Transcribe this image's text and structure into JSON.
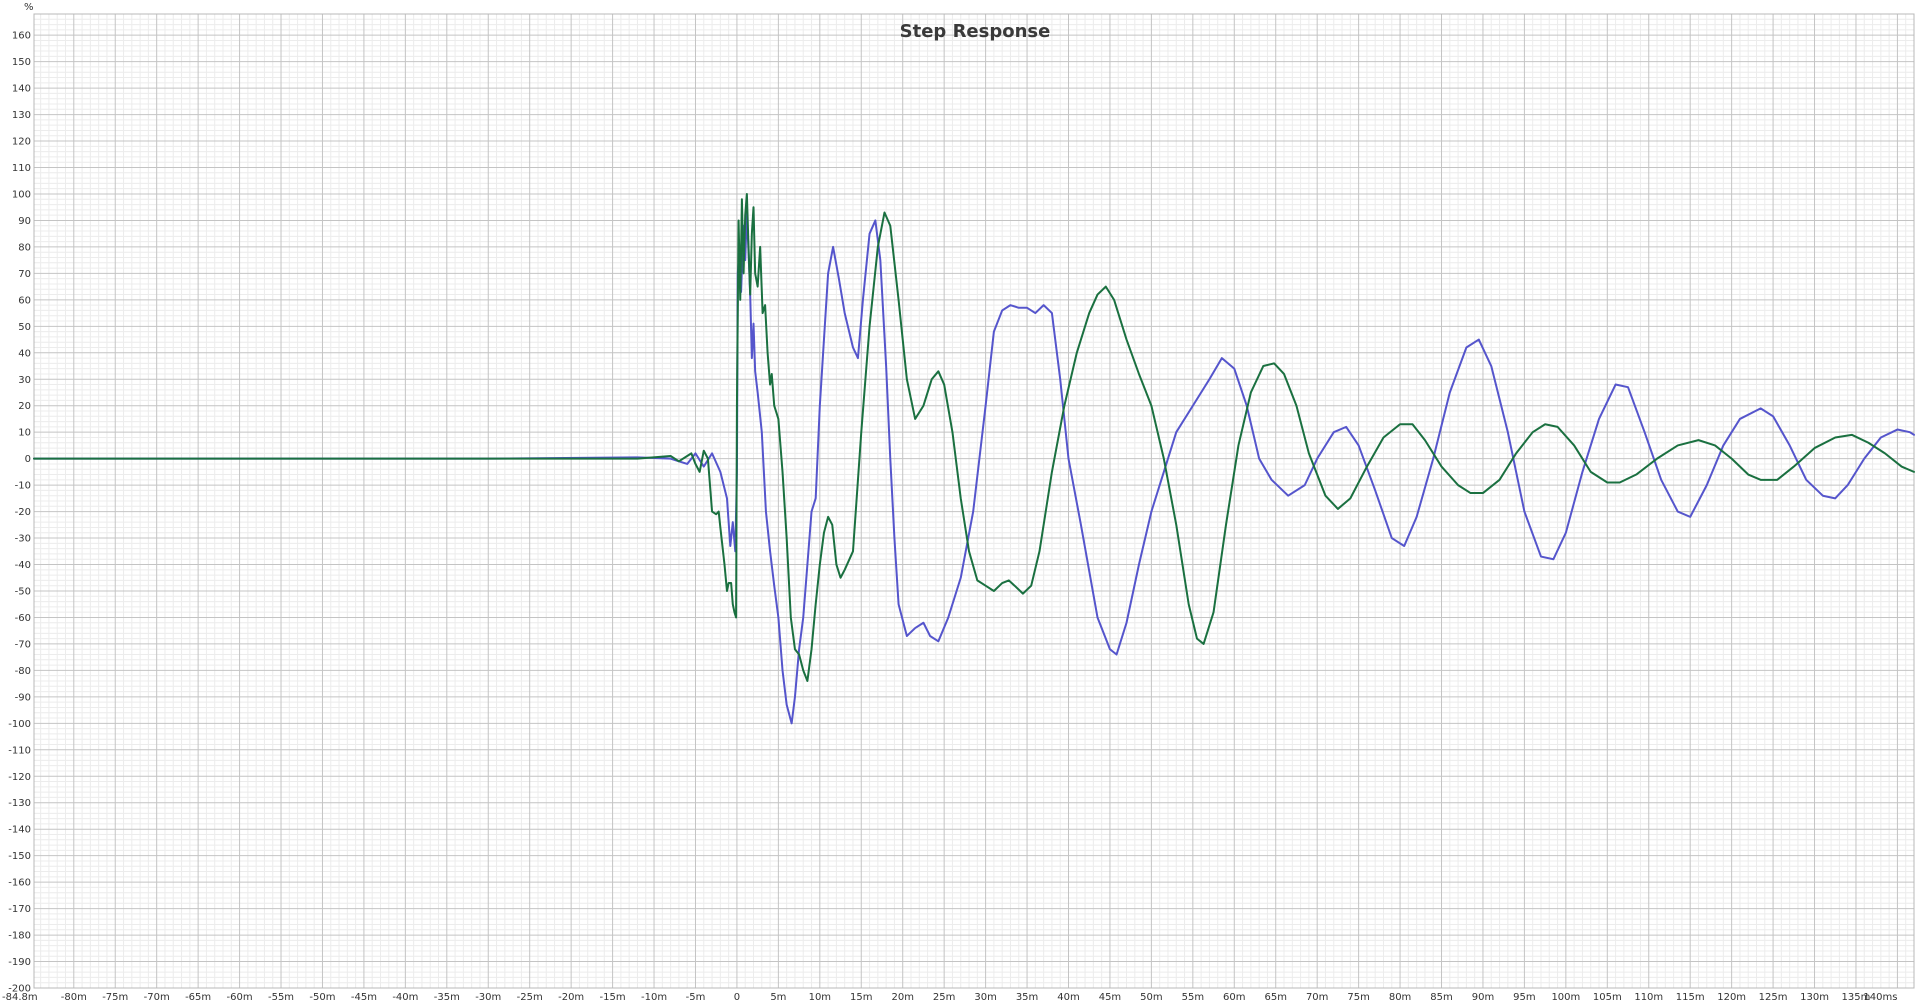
{
  "chart_data": {
    "type": "line",
    "title": "Step Response",
    "ylabel": "%",
    "xlabel": "",
    "xlim": [
      -84.8,
      142
    ],
    "ylim": [
      -200,
      168
    ],
    "grid": true,
    "yticks": [
      160,
      150,
      140,
      130,
      120,
      110,
      100,
      90,
      80,
      70,
      60,
      50,
      40,
      30,
      20,
      10,
      0,
      -10,
      -20,
      -30,
      -40,
      -50,
      -60,
      -70,
      -80,
      -90,
      -100,
      -110,
      -120,
      -130,
      -140,
      -150,
      -160,
      -170,
      -180,
      -190,
      -200
    ],
    "xticks": [
      {
        "v": -84.8,
        "label": "-84.8m"
      },
      {
        "v": -80,
        "label": "-80m"
      },
      {
        "v": -75,
        "label": "-75m"
      },
      {
        "v": -70,
        "label": "-70m"
      },
      {
        "v": -65,
        "label": "-65m"
      },
      {
        "v": -60,
        "label": "-60m"
      },
      {
        "v": -55,
        "label": "-55m"
      },
      {
        "v": -50,
        "label": "-50m"
      },
      {
        "v": -45,
        "label": "-45m"
      },
      {
        "v": -40,
        "label": "-40m"
      },
      {
        "v": -35,
        "label": "-35m"
      },
      {
        "v": -30,
        "label": "-30m"
      },
      {
        "v": -25,
        "label": "-25m"
      },
      {
        "v": -20,
        "label": "-20m"
      },
      {
        "v": -15,
        "label": "-15m"
      },
      {
        "v": -10,
        "label": "-10m"
      },
      {
        "v": -5,
        "label": "-5m"
      },
      {
        "v": 0,
        "label": "0"
      },
      {
        "v": 5,
        "label": "5m"
      },
      {
        "v": 10,
        "label": "10m"
      },
      {
        "v": 15,
        "label": "15m"
      },
      {
        "v": 20,
        "label": "20m"
      },
      {
        "v": 25,
        "label": "25m"
      },
      {
        "v": 30,
        "label": "30m"
      },
      {
        "v": 35,
        "label": "35m"
      },
      {
        "v": 40,
        "label": "40m"
      },
      {
        "v": 45,
        "label": "45m"
      },
      {
        "v": 50,
        "label": "50m"
      },
      {
        "v": 55,
        "label": "55m"
      },
      {
        "v": 60,
        "label": "60m"
      },
      {
        "v": 65,
        "label": "65m"
      },
      {
        "v": 70,
        "label": "70m"
      },
      {
        "v": 75,
        "label": "75m"
      },
      {
        "v": 80,
        "label": "80m"
      },
      {
        "v": 85,
        "label": "85m"
      },
      {
        "v": 90,
        "label": "90m"
      },
      {
        "v": 95,
        "label": "95m"
      },
      {
        "v": 100,
        "label": "100m"
      },
      {
        "v": 105,
        "label": "105m"
      },
      {
        "v": 110,
        "label": "110m"
      },
      {
        "v": 115,
        "label": "115m"
      },
      {
        "v": 120,
        "label": "120m"
      },
      {
        "v": 125,
        "label": "125m"
      },
      {
        "v": 130,
        "label": "130m"
      },
      {
        "v": 135,
        "label": "135m"
      },
      {
        "v": 140,
        "label": "140ms"
      }
    ],
    "series": [
      {
        "color": "#5555cc",
        "points": [
          [
            -84.8,
            0
          ],
          [
            -60,
            0
          ],
          [
            -30,
            0
          ],
          [
            -12,
            0.5
          ],
          [
            -8,
            0
          ],
          [
            -6,
            -2
          ],
          [
            -5,
            2
          ],
          [
            -4,
            -3
          ],
          [
            -3,
            2
          ],
          [
            -2,
            -5
          ],
          [
            -1.2,
            -15
          ],
          [
            -0.8,
            -33
          ],
          [
            -0.5,
            -24
          ],
          [
            -0.2,
            -35
          ],
          [
            0,
            -5
          ],
          [
            0.1,
            70
          ],
          [
            0.3,
            78
          ],
          [
            0.5,
            63
          ],
          [
            0.8,
            88
          ],
          [
            1.0,
            75
          ],
          [
            1.2,
            93
          ],
          [
            1.4,
            78
          ],
          [
            1.6,
            62
          ],
          [
            1.8,
            38
          ],
          [
            2.0,
            51
          ],
          [
            2.2,
            33
          ],
          [
            2.5,
            25
          ],
          [
            3.0,
            10
          ],
          [
            3.5,
            -20
          ],
          [
            4.0,
            -35
          ],
          [
            4.5,
            -48
          ],
          [
            5.0,
            -60
          ],
          [
            5.5,
            -80
          ],
          [
            6.0,
            -93
          ],
          [
            6.6,
            -100
          ],
          [
            7.0,
            -90
          ],
          [
            7.5,
            -72
          ],
          [
            8.0,
            -60
          ],
          [
            8.5,
            -40
          ],
          [
            9.0,
            -20
          ],
          [
            9.5,
            -15
          ],
          [
            10.0,
            20
          ],
          [
            10.5,
            45
          ],
          [
            11.0,
            70
          ],
          [
            11.6,
            80
          ],
          [
            12.3,
            68
          ],
          [
            13.0,
            55
          ],
          [
            14.0,
            42
          ],
          [
            14.6,
            38
          ],
          [
            15.2,
            60
          ],
          [
            16.0,
            85
          ],
          [
            16.7,
            90
          ],
          [
            17.3,
            75
          ],
          [
            18.0,
            35
          ],
          [
            18.5,
            0
          ],
          [
            19.0,
            -30
          ],
          [
            19.5,
            -55
          ],
          [
            20.5,
            -67
          ],
          [
            21.5,
            -64
          ],
          [
            22.5,
            -62
          ],
          [
            23.3,
            -67
          ],
          [
            24.3,
            -69
          ],
          [
            25.5,
            -60
          ],
          [
            27.0,
            -45
          ],
          [
            28.5,
            -20
          ],
          [
            30.0,
            20
          ],
          [
            31.0,
            48
          ],
          [
            32.0,
            56
          ],
          [
            33.0,
            58
          ],
          [
            34.0,
            57
          ],
          [
            35.0,
            57
          ],
          [
            36.0,
            55
          ],
          [
            37.0,
            58
          ],
          [
            38.0,
            55
          ],
          [
            39.0,
            30
          ],
          [
            40.0,
            0
          ],
          [
            41.5,
            -25
          ],
          [
            43.5,
            -60
          ],
          [
            45.0,
            -72
          ],
          [
            45.8,
            -74
          ],
          [
            47.0,
            -62
          ],
          [
            48.5,
            -40
          ],
          [
            50.0,
            -20
          ],
          [
            51.5,
            -5
          ],
          [
            53.0,
            10
          ],
          [
            55.0,
            20
          ],
          [
            57.0,
            30
          ],
          [
            58.5,
            38
          ],
          [
            60.0,
            34
          ],
          [
            61.5,
            20
          ],
          [
            63.0,
            0
          ],
          [
            64.5,
            -8
          ],
          [
            66.5,
            -14
          ],
          [
            68.5,
            -10
          ],
          [
            70.0,
            0
          ],
          [
            72.0,
            10
          ],
          [
            73.5,
            12
          ],
          [
            75.0,
            5
          ],
          [
            77.0,
            -12
          ],
          [
            79.0,
            -30
          ],
          [
            80.5,
            -33
          ],
          [
            82.0,
            -22
          ],
          [
            84.0,
            0
          ],
          [
            86.0,
            25
          ],
          [
            88.0,
            42
          ],
          [
            89.5,
            45
          ],
          [
            91.0,
            35
          ],
          [
            93.0,
            10
          ],
          [
            95.0,
            -20
          ],
          [
            97.0,
            -37
          ],
          [
            98.5,
            -38
          ],
          [
            100.0,
            -28
          ],
          [
            102.0,
            -5
          ],
          [
            104.0,
            15
          ],
          [
            106.0,
            28
          ],
          [
            107.5,
            27
          ],
          [
            109.5,
            10
          ],
          [
            111.5,
            -8
          ],
          [
            113.5,
            -20
          ],
          [
            115.0,
            -22
          ],
          [
            117.0,
            -10
          ],
          [
            119.0,
            5
          ],
          [
            121.0,
            15
          ],
          [
            123.5,
            19
          ],
          [
            125.0,
            16
          ],
          [
            127.0,
            5
          ],
          [
            129.0,
            -8
          ],
          [
            131.0,
            -14
          ],
          [
            132.5,
            -15
          ],
          [
            134.0,
            -10
          ],
          [
            136.0,
            0
          ],
          [
            138.0,
            8
          ],
          [
            140.0,
            11
          ],
          [
            141.5,
            10
          ],
          [
            142,
            9
          ]
        ]
      },
      {
        "color": "#1a7040",
        "points": [
          [
            -84.8,
            0
          ],
          [
            -60,
            0
          ],
          [
            -30,
            0
          ],
          [
            -12,
            0
          ],
          [
            -8,
            1
          ],
          [
            -7,
            -1
          ],
          [
            -6,
            1
          ],
          [
            -5.5,
            2
          ],
          [
            -5,
            -2
          ],
          [
            -4.5,
            -5
          ],
          [
            -4,
            3
          ],
          [
            -3.5,
            0
          ],
          [
            -3.2,
            -12
          ],
          [
            -3,
            -20
          ],
          [
            -2.5,
            -21
          ],
          [
            -2.2,
            -20
          ],
          [
            -2,
            -26
          ],
          [
            -1.5,
            -40
          ],
          [
            -1.2,
            -50
          ],
          [
            -1.0,
            -47
          ],
          [
            -0.7,
            -47
          ],
          [
            -0.5,
            -55
          ],
          [
            -0.3,
            -58
          ],
          [
            -0.1,
            -60
          ],
          [
            0,
            20
          ],
          [
            0.2,
            90
          ],
          [
            0.4,
            60
          ],
          [
            0.6,
            98
          ],
          [
            0.8,
            70
          ],
          [
            1.0,
            92
          ],
          [
            1.2,
            100
          ],
          [
            1.4,
            80
          ],
          [
            1.6,
            62
          ],
          [
            1.8,
            85
          ],
          [
            2.0,
            95
          ],
          [
            2.2,
            70
          ],
          [
            2.5,
            65
          ],
          [
            2.8,
            80
          ],
          [
            3.1,
            55
          ],
          [
            3.4,
            58
          ],
          [
            3.7,
            40
          ],
          [
            4.0,
            28
          ],
          [
            4.2,
            32
          ],
          [
            4.5,
            20
          ],
          [
            5.0,
            15
          ],
          [
            5.5,
            -5
          ],
          [
            6.0,
            -30
          ],
          [
            6.5,
            -60
          ],
          [
            7.0,
            -72
          ],
          [
            7.5,
            -74
          ],
          [
            8.0,
            -80
          ],
          [
            8.5,
            -84
          ],
          [
            9.0,
            -72
          ],
          [
            9.5,
            -55
          ],
          [
            10.0,
            -40
          ],
          [
            10.5,
            -28
          ],
          [
            11.0,
            -22
          ],
          [
            11.5,
            -25
          ],
          [
            12.0,
            -40
          ],
          [
            12.5,
            -45
          ],
          [
            13.0,
            -42
          ],
          [
            14.0,
            -35
          ],
          [
            15.0,
            10
          ],
          [
            16.0,
            50
          ],
          [
            17.0,
            80
          ],
          [
            17.8,
            93
          ],
          [
            18.5,
            88
          ],
          [
            19.5,
            60
          ],
          [
            20.5,
            30
          ],
          [
            21.5,
            15
          ],
          [
            22.5,
            20
          ],
          [
            23.5,
            30
          ],
          [
            24.3,
            33
          ],
          [
            25.0,
            28
          ],
          [
            26.0,
            10
          ],
          [
            27.0,
            -15
          ],
          [
            28.0,
            -35
          ],
          [
            29.0,
            -46
          ],
          [
            30.0,
            -48
          ],
          [
            31.0,
            -50
          ],
          [
            32.0,
            -47
          ],
          [
            32.8,
            -46
          ],
          [
            33.5,
            -48
          ],
          [
            34.5,
            -51
          ],
          [
            35.5,
            -48
          ],
          [
            36.5,
            -35
          ],
          [
            38.0,
            -5
          ],
          [
            39.5,
            20
          ],
          [
            41.0,
            40
          ],
          [
            42.5,
            55
          ],
          [
            43.5,
            62
          ],
          [
            44.5,
            65
          ],
          [
            45.5,
            60
          ],
          [
            47.0,
            45
          ],
          [
            48.5,
            32
          ],
          [
            50.0,
            20
          ],
          [
            51.5,
            0
          ],
          [
            53.0,
            -25
          ],
          [
            54.5,
            -55
          ],
          [
            55.5,
            -68
          ],
          [
            56.3,
            -70
          ],
          [
            57.5,
            -58
          ],
          [
            59.0,
            -25
          ],
          [
            60.5,
            5
          ],
          [
            62.0,
            25
          ],
          [
            63.5,
            35
          ],
          [
            64.8,
            36
          ],
          [
            66.0,
            32
          ],
          [
            67.5,
            20
          ],
          [
            69.0,
            2
          ],
          [
            71.0,
            -14
          ],
          [
            72.5,
            -19
          ],
          [
            74.0,
            -15
          ],
          [
            76.0,
            -3
          ],
          [
            78.0,
            8
          ],
          [
            80.0,
            13
          ],
          [
            81.5,
            13
          ],
          [
            83.0,
            7
          ],
          [
            85.0,
            -3
          ],
          [
            87.0,
            -10
          ],
          [
            88.5,
            -13
          ],
          [
            90.0,
            -13
          ],
          [
            92.0,
            -8
          ],
          [
            94.0,
            2
          ],
          [
            96.0,
            10
          ],
          [
            97.5,
            13
          ],
          [
            99.0,
            12
          ],
          [
            101.0,
            5
          ],
          [
            103.0,
            -5
          ],
          [
            105.0,
            -9
          ],
          [
            106.5,
            -9
          ],
          [
            108.5,
            -6
          ],
          [
            111.0,
            0
          ],
          [
            113.5,
            5
          ],
          [
            116.0,
            7
          ],
          [
            118.0,
            5
          ],
          [
            120.0,
            0
          ],
          [
            122.0,
            -6
          ],
          [
            123.5,
            -8
          ],
          [
            125.5,
            -8
          ],
          [
            127.5,
            -3
          ],
          [
            130.0,
            4
          ],
          [
            132.5,
            8
          ],
          [
            134.5,
            9
          ],
          [
            136.5,
            6
          ],
          [
            138.5,
            2
          ],
          [
            140.5,
            -3
          ],
          [
            142,
            -5
          ]
        ]
      }
    ]
  }
}
